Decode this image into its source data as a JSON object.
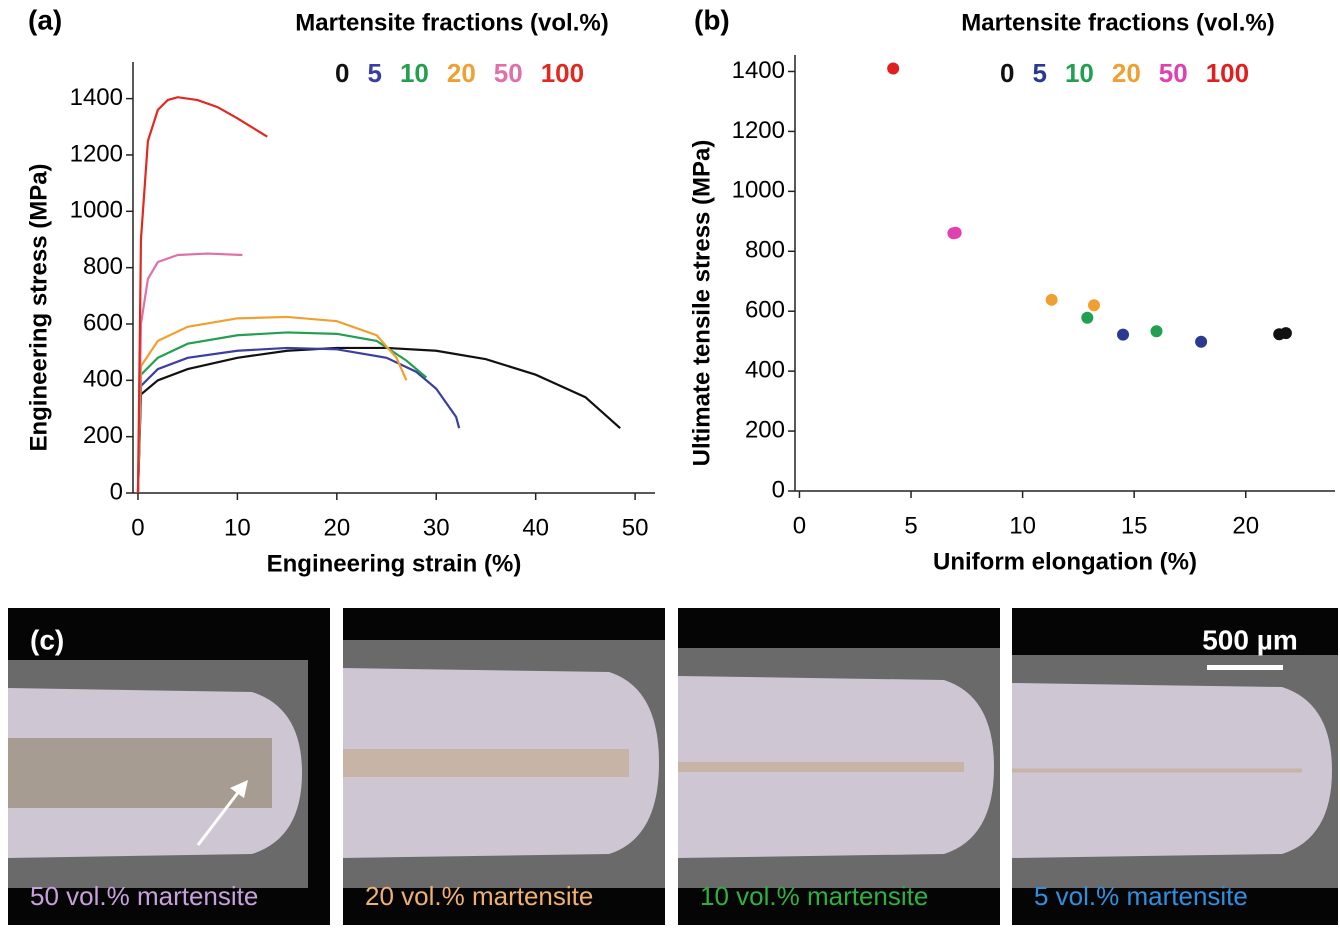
{
  "chart_data": [
    {
      "type": "line",
      "panel": "(a)",
      "title": "Martensite fractions (vol.%)",
      "x_label": "Engineering strain (%)",
      "y_label": "Engineering stress (MPa)",
      "xlim": [
        -0.5,
        52
      ],
      "xticks": [
        0,
        10,
        20,
        30,
        40,
        50
      ],
      "ylim": [
        0,
        1530
      ],
      "yticks": [
        0,
        200,
        400,
        600,
        800,
        1000,
        1200,
        1400
      ],
      "series": [
        {
          "name": "0",
          "color": "#111111",
          "x": [
            0,
            0.3,
            2,
            5,
            10,
            15,
            20,
            25,
            30,
            35,
            40,
            45,
            48.5
          ],
          "values": [
            0,
            350,
            400,
            440,
            480,
            505,
            515,
            515,
            505,
            475,
            420,
            340,
            230
          ]
        },
        {
          "name": "5",
          "color": "#3a3fa0",
          "x": [
            0,
            0.3,
            2,
            5,
            10,
            15,
            20,
            25,
            28,
            30,
            32,
            32.3
          ],
          "values": [
            0,
            380,
            440,
            480,
            505,
            515,
            510,
            480,
            430,
            370,
            270,
            230
          ]
        },
        {
          "name": "10",
          "color": "#22a050",
          "x": [
            0,
            0.3,
            2,
            5,
            10,
            15,
            20,
            24,
            27,
            29
          ],
          "values": [
            0,
            420,
            480,
            530,
            560,
            570,
            565,
            540,
            470,
            410
          ]
        },
        {
          "name": "20",
          "color": "#f0a030",
          "x": [
            0,
            0.3,
            2,
            5,
            10,
            15,
            20,
            24,
            26,
            27
          ],
          "values": [
            0,
            450,
            540,
            590,
            620,
            625,
            610,
            560,
            480,
            400
          ]
        },
        {
          "name": "50",
          "color": "#e070a8",
          "x": [
            0,
            0.3,
            1,
            2,
            4,
            7,
            10.5
          ],
          "values": [
            0,
            600,
            760,
            820,
            845,
            850,
            845
          ]
        },
        {
          "name": "100",
          "color": "#e02a20",
          "x": [
            0,
            0.3,
            1,
            2,
            3,
            4,
            6,
            8,
            10,
            13
          ],
          "values": [
            0,
            900,
            1250,
            1360,
            1395,
            1405,
            1395,
            1370,
            1330,
            1265
          ]
        }
      ]
    },
    {
      "type": "scatter",
      "panel": "(b)",
      "title": "Martensite fractions (vol.%)",
      "x_label": "Uniform elongation (%)",
      "y_label": "Ultimate tensile stress (MPa)",
      "xlim": [
        -0.2,
        24
      ],
      "xticks": [
        0,
        5,
        10,
        15,
        20
      ],
      "ylim": [
        0,
        1455
      ],
      "yticks": [
        0,
        200,
        400,
        600,
        800,
        1000,
        1200,
        1400
      ],
      "series": [
        {
          "name": "0",
          "color": "#111111",
          "x": [
            21.5,
            21.8
          ],
          "values": [
            523,
            527
          ]
        },
        {
          "name": "5",
          "color": "#2a3a90",
          "x": [
            14.5,
            18.0
          ],
          "values": [
            522,
            498
          ]
        },
        {
          "name": "10",
          "color": "#20a050",
          "x": [
            12.9,
            16.0
          ],
          "values": [
            578,
            533
          ]
        },
        {
          "name": "20",
          "color": "#f0a030",
          "x": [
            11.3,
            13.2
          ],
          "values": [
            638,
            620
          ]
        },
        {
          "name": "50",
          "color": "#e040b0",
          "x": [
            6.9,
            7.0
          ],
          "values": [
            860,
            862
          ]
        },
        {
          "name": "100",
          "color": "#e02020",
          "x": [
            4.2
          ],
          "values": [
            1410
          ]
        }
      ]
    }
  ],
  "micrographs": {
    "panel": "(c)",
    "scale_bar": "500 µm",
    "captions": [
      {
        "text": "50 vol.% martensite",
        "color": "#c8a0dc"
      },
      {
        "text": "20 vol.% martensite",
        "color": "#f0b070"
      },
      {
        "text": "10 vol.% martensite",
        "color": "#30b040"
      },
      {
        "text": "5 vol.% martensite",
        "color": "#3090e0"
      }
    ]
  }
}
